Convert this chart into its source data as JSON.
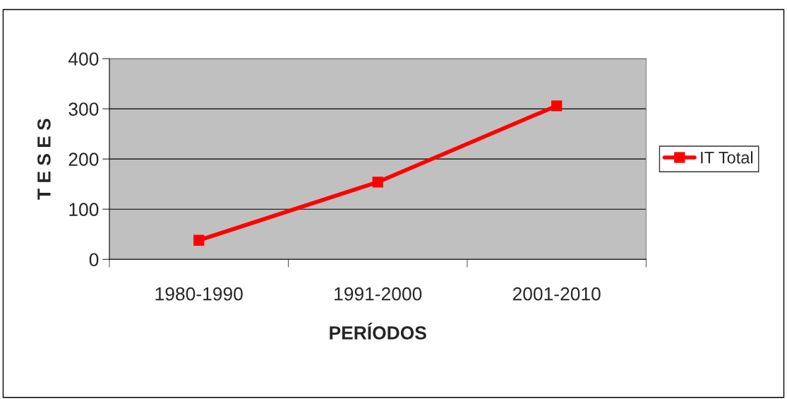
{
  "chart_data": {
    "type": "line",
    "xlabel": "PERÍODOS",
    "ylabel": "T E S E S",
    "categories": [
      "1980-1990",
      "1991-2000",
      "2001-2010"
    ],
    "series": [
      {
        "name": "IT Total",
        "color": "#ff0000",
        "values": [
          38,
          154,
          306
        ]
      }
    ],
    "ylim": [
      0,
      400
    ],
    "yticks": [
      0,
      100,
      200,
      300,
      400
    ],
    "grid": "y",
    "legend": "right",
    "marker": "square",
    "line_style": "solid"
  }
}
